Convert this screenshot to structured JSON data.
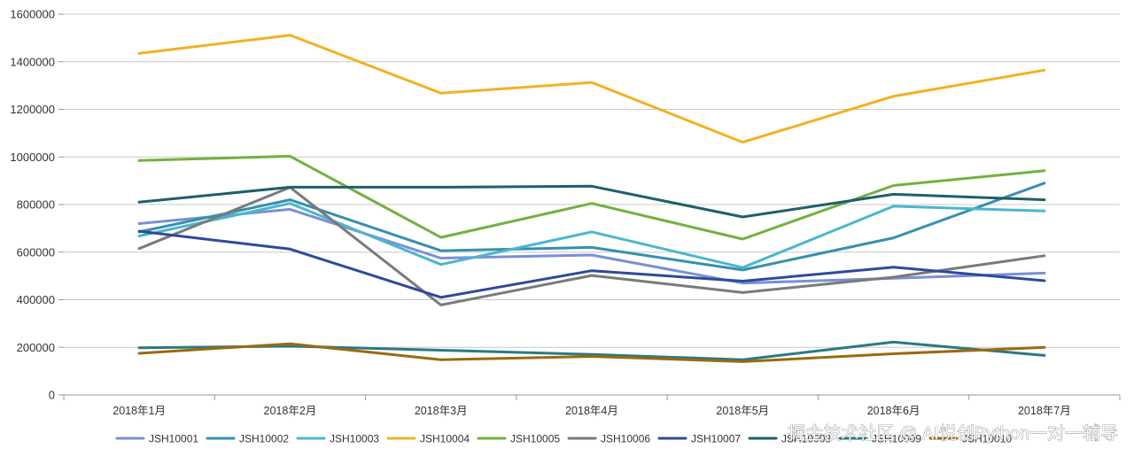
{
  "chart_data": {
    "type": "line",
    "title": "",
    "xlabel": "",
    "ylabel": "",
    "ylim": [
      0,
      1600000
    ],
    "yticks": [
      0,
      200000,
      400000,
      600000,
      800000,
      1000000,
      1200000,
      1400000,
      1600000
    ],
    "ytick_labels": [
      "0",
      "200000",
      "400000",
      "600000",
      "800000",
      "1000000",
      "1200000",
      "1400000",
      "1600000"
    ],
    "grid": "horizontal",
    "legend_position": "bottom",
    "categories": [
      "2018年1月",
      "2018年2月",
      "2018年3月",
      "2018年4月",
      "2018年5月",
      "2018年6月",
      "2018年7月"
    ],
    "series": [
      {
        "name": "JSH10001",
        "color": "#7b8fd6",
        "values": [
          720000,
          780000,
          575000,
          588000,
          470000,
          490000,
          512000
        ]
      },
      {
        "name": "JSH10002",
        "color": "#3690ad",
        "values": [
          685000,
          820000,
          606000,
          620000,
          525000,
          660000,
          890000
        ]
      },
      {
        "name": "JSH10003",
        "color": "#4bb7cb",
        "values": [
          668000,
          805000,
          548000,
          685000,
          535000,
          793000,
          773000
        ]
      },
      {
        "name": "JSH10004",
        "color": "#f2b124",
        "values": [
          1435000,
          1512000,
          1268000,
          1313000,
          1062000,
          1255000,
          1365000
        ]
      },
      {
        "name": "JSH10005",
        "color": "#74b03f",
        "values": [
          985000,
          1003000,
          662000,
          805000,
          655000,
          880000,
          942000
        ]
      },
      {
        "name": "JSH10006",
        "color": "#7a7a7a",
        "values": [
          615000,
          872000,
          378000,
          502000,
          430000,
          495000,
          585000
        ]
      },
      {
        "name": "JSH10007",
        "color": "#2f4a99",
        "values": [
          688000,
          613000,
          410000,
          522000,
          478000,
          537000,
          480000
        ]
      },
      {
        "name": "JSH10008",
        "color": "#1f5f6b",
        "values": [
          810000,
          873000,
          873000,
          877000,
          748000,
          843000,
          820000
        ]
      },
      {
        "name": "JSH10009",
        "color": "#2a7a83",
        "values": [
          198000,
          205000,
          188000,
          170000,
          148000,
          222000,
          166000
        ]
      },
      {
        "name": "JSH10010",
        "color": "#9a6a10",
        "values": [
          175000,
          215000,
          148000,
          162000,
          140000,
          173000,
          200000
        ]
      }
    ]
  },
  "watermark": "掘金技术社区 @ AI悦创Python一对一辅导"
}
